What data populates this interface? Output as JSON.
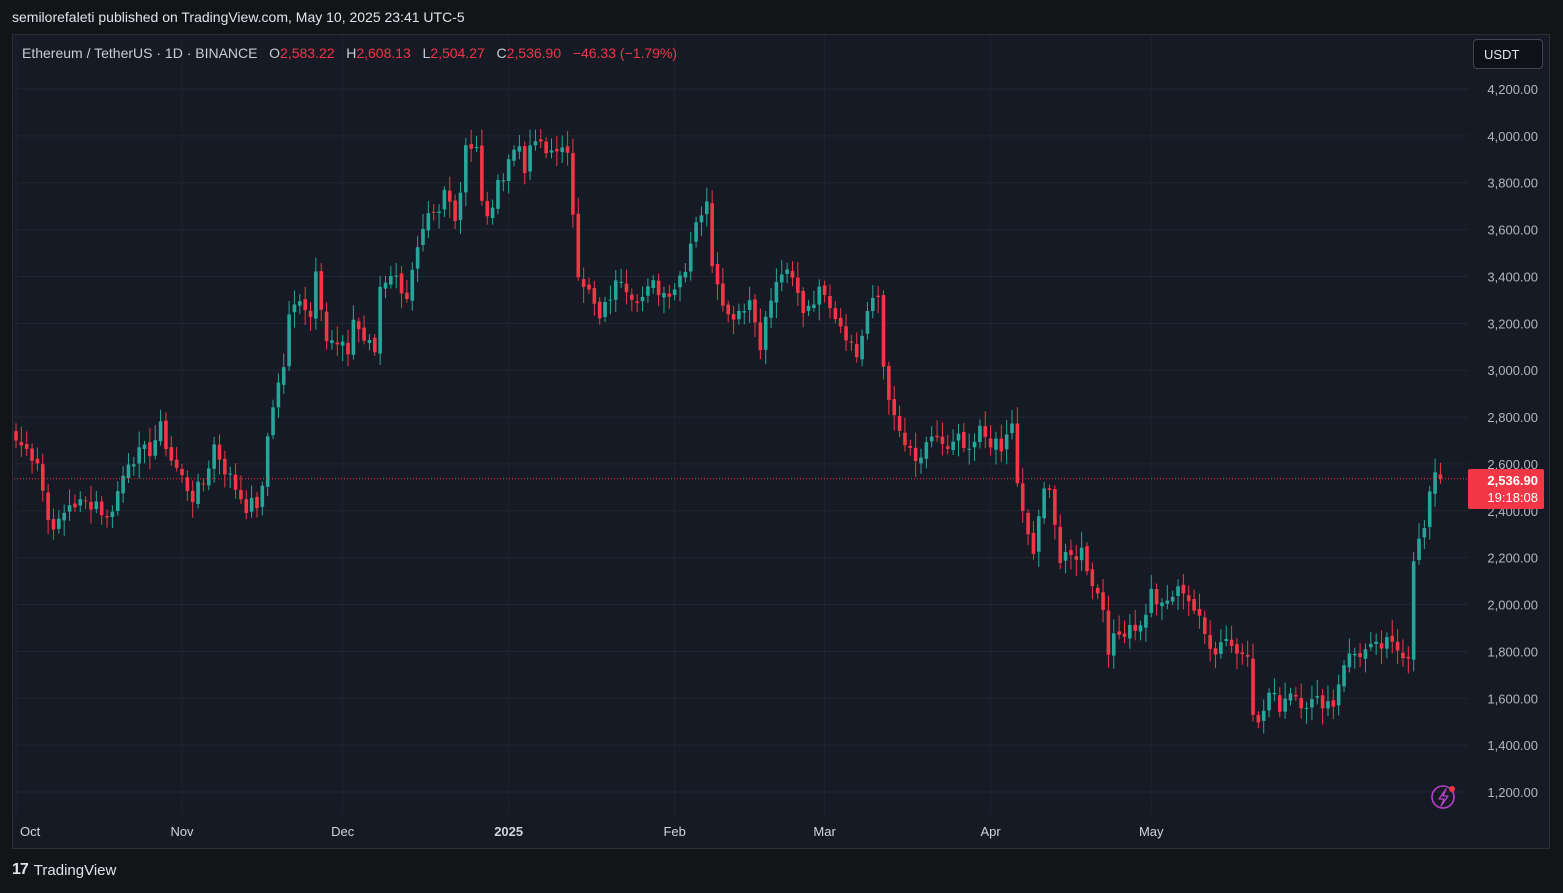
{
  "header": {
    "published": "semilorefaleti published on TradingView.com, May 10, 2025 23:41 UTC-5"
  },
  "legend": {
    "symbol": "Ethereum / TetherUS · 1D · BINANCE",
    "open_label": "O",
    "open": "2,583.22",
    "high_label": "H",
    "high": "2,608.13",
    "low_label": "L",
    "low": "2,504.27",
    "close_label": "C",
    "close": "2,536.90",
    "change": "−46.33 (−1.79%)"
  },
  "currency": "USDT",
  "price_tag": {
    "price": "2,536.90",
    "countdown": "19:18:08"
  },
  "footer": {
    "brand": "TradingView",
    "logo": "17"
  },
  "colors": {
    "up": "#26a69a",
    "down": "#f23645",
    "grid": "#232632",
    "bg": "#161a25"
  },
  "icons": {
    "alert": "lightning-alert-icon"
  },
  "chart_data": {
    "type": "candlestick",
    "title": "Ethereum / TetherUS · 1D · BINANCE",
    "interval": "1D",
    "yticks": [
      "1,200.00",
      "1,400.00",
      "1,600.00",
      "1,800.00",
      "2,000.00",
      "2,200.00",
      "2,400.00",
      "2,600.00",
      "2,800.00",
      "3,000.00",
      "3,200.00",
      "3,400.00",
      "3,600.00",
      "3,800.00",
      "4,000.00",
      "4,200.00"
    ],
    "ylim": [
      1130,
      4420
    ],
    "month_labels": [
      {
        "label": "Oct",
        "index": 0
      },
      {
        "label": "Nov",
        "index": 31
      },
      {
        "label": "Dec",
        "index": 61
      },
      {
        "label": "2025",
        "index": 92
      },
      {
        "label": "Feb",
        "index": 123
      },
      {
        "label": "Mar",
        "index": 151
      },
      {
        "label": "Apr",
        "index": 182
      },
      {
        "label": "May",
        "index": 212
      }
    ],
    "last_close": 2536.9,
    "grid": true,
    "close_path_points": [
      [
        0,
        2700
      ],
      [
        4,
        2620
      ],
      [
        6,
        2360
      ],
      [
        8,
        2340
      ],
      [
        10,
        2430
      ],
      [
        13,
        2430
      ],
      [
        15,
        2440
      ],
      [
        17,
        2360
      ],
      [
        19,
        2480
      ],
      [
        21,
        2620
      ],
      [
        23,
        2640
      ],
      [
        25,
        2660
      ],
      [
        27,
        2750
      ],
      [
        29,
        2620
      ],
      [
        31,
        2540
      ],
      [
        33,
        2460
      ],
      [
        35,
        2520
      ],
      [
        37,
        2680
      ],
      [
        39,
        2580
      ],
      [
        41,
        2500
      ],
      [
        43,
        2420
      ],
      [
        45,
        2430
      ],
      [
        46,
        2480
      ],
      [
        47,
        2720
      ],
      [
        48,
        2860
      ],
      [
        50,
        3020
      ],
      [
        51,
        3220
      ],
      [
        53,
        3320
      ],
      [
        55,
        3230
      ],
      [
        56,
        3450
      ],
      [
        58,
        3130
      ],
      [
        60,
        3100
      ],
      [
        62,
        3080
      ],
      [
        63,
        3220
      ],
      [
        65,
        3130
      ],
      [
        67,
        3080
      ],
      [
        68,
        3360
      ],
      [
        70,
        3420
      ],
      [
        73,
        3320
      ],
      [
        75,
        3500
      ],
      [
        77,
        3640
      ],
      [
        79,
        3660
      ],
      [
        80,
        3760
      ],
      [
        82,
        3670
      ],
      [
        83,
        3770
      ],
      [
        84,
        3970
      ],
      [
        86,
        3960
      ],
      [
        87,
        3710
      ],
      [
        88,
        3640
      ],
      [
        90,
        3780
      ],
      [
        92,
        3910
      ],
      [
        94,
        3960
      ],
      [
        95,
        3870
      ],
      [
        97,
        3980
      ],
      [
        99,
        3920
      ],
      [
        101,
        3960
      ],
      [
        103,
        3900
      ],
      [
        104,
        3680
      ],
      [
        105,
        3430
      ],
      [
        107,
        3330
      ],
      [
        109,
        3210
      ],
      [
        111,
        3320
      ],
      [
        113,
        3400
      ],
      [
        115,
        3330
      ],
      [
        117,
        3310
      ],
      [
        119,
        3360
      ],
      [
        121,
        3330
      ],
      [
        123,
        3360
      ],
      [
        125,
        3450
      ],
      [
        127,
        3650
      ],
      [
        129,
        3700
      ],
      [
        130,
        3470
      ],
      [
        131,
        3390
      ],
      [
        133,
        3230
      ],
      [
        135,
        3260
      ],
      [
        137,
        3300
      ],
      [
        139,
        3120
      ],
      [
        141,
        3300
      ],
      [
        143,
        3420
      ],
      [
        145,
        3380
      ],
      [
        147,
        3260
      ],
      [
        149,
        3310
      ],
      [
        151,
        3350
      ],
      [
        153,
        3240
      ],
      [
        155,
        3160
      ],
      [
        157,
        3060
      ],
      [
        159,
        3250
      ],
      [
        161,
        3310
      ],
      [
        162,
        3020
      ],
      [
        164,
        2780
      ],
      [
        166,
        2680
      ],
      [
        168,
        2600
      ],
      [
        170,
        2660
      ],
      [
        172,
        2720
      ],
      [
        174,
        2650
      ],
      [
        176,
        2700
      ],
      [
        178,
        2630
      ],
      [
        180,
        2740
      ],
      [
        182,
        2700
      ],
      [
        184,
        2650
      ],
      [
        186,
        2780
      ],
      [
        187,
        2500
      ],
      [
        188,
        2380
      ],
      [
        190,
        2220
      ],
      [
        192,
        2480
      ],
      [
        193,
        2520
      ],
      [
        195,
        2180
      ],
      [
        197,
        2200
      ],
      [
        199,
        2230
      ],
      [
        201,
        2100
      ],
      [
        203,
        1990
      ],
      [
        204,
        1820
      ],
      [
        206,
        1870
      ],
      [
        208,
        1920
      ],
      [
        210,
        1900
      ],
      [
        212,
        2050
      ],
      [
        214,
        1980
      ],
      [
        216,
        2040
      ],
      [
        218,
        2070
      ],
      [
        220,
        1980
      ],
      [
        222,
        1870
      ],
      [
        224,
        1810
      ],
      [
        226,
        1870
      ],
      [
        228,
        1790
      ],
      [
        230,
        1810
      ],
      [
        231,
        1560
      ],
      [
        232,
        1480
      ],
      [
        234,
        1620
      ],
      [
        236,
        1570
      ],
      [
        238,
        1640
      ],
      [
        240,
        1590
      ],
      [
        242,
        1580
      ],
      [
        244,
        1590
      ],
      [
        246,
        1580
      ],
      [
        248,
        1760
      ],
      [
        250,
        1790
      ],
      [
        252,
        1800
      ],
      [
        254,
        1810
      ],
      [
        256,
        1830
      ],
      [
        258,
        1810
      ],
      [
        260,
        1790
      ],
      [
        261,
        2210
      ],
      [
        263,
        2320
      ],
      [
        265,
        2580
      ],
      [
        266,
        2537
      ]
    ]
  }
}
